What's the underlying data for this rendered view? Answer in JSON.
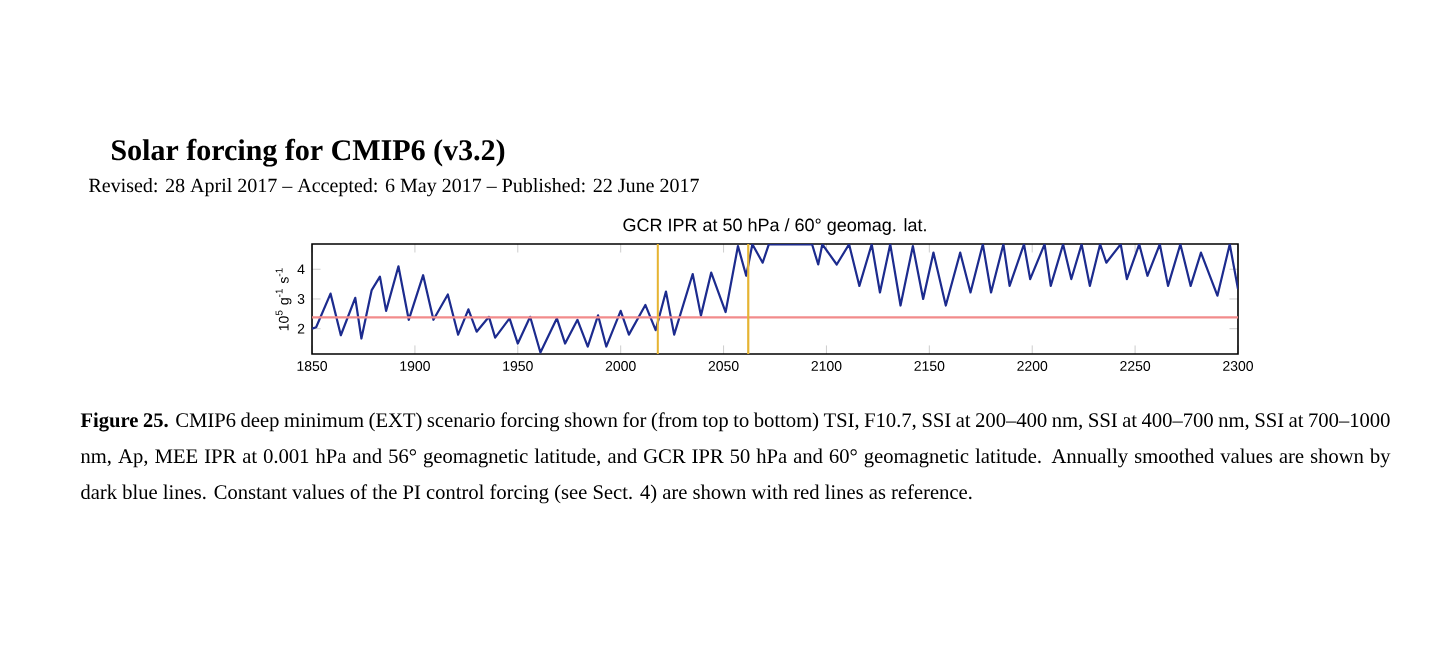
{
  "chart_data": {
    "type": "line",
    "title": "GCR IPR at 50 hPa / 60° geomag. lat.",
    "ylabel": "10$^{5}$ g$^{-1}$ s$^{-1}$",
    "annotations": [
      "Solar forcing for CMIP6 (v3.2)",
      "Revised: 28 April 2017 – Accepted: 6 May 2017 – Published: 22 June 2017",
      "**Figure 25.** CMIP6 deep minimum (EXT) scenario forcing shown for (from top to bottom) TSI, F10.7, SSI at 200–400 nm, SSI at 400–700 nm, SSI at 700–1000 nm, Ap, MEE IPR at 0.001 hPa and 56° geomagnetic latitude, and GCR IPR 50 hPa and 60° geomagnetic latitude. Annually smoothed values are shown by dark blue lines. Constant values of the PI control forcing (see Sect. 4) are shown with red lines as reference."
    ],
    "x": [
      1850,
      1852,
      1859,
      1864,
      1871,
      1874,
      1879,
      1883,
      1886,
      1892,
      1897,
      1904,
      1909,
      1916,
      1921,
      1926,
      1930,
      1936,
      1939,
      1946,
      1950,
      1956,
      1961,
      1969,
      1973,
      1979,
      1984,
      1989,
      1993,
      2000,
      2004,
      2012,
      2017,
      2022,
      2026,
      2035,
      2039,
      2044,
      2051,
      2057,
      2061,
      2064,
      2069,
      2072,
      2093,
      2096,
      2098,
      2105,
      2111,
      2116,
      2122,
      2126,
      2131,
      2136,
      2142,
      2147,
      2152,
      2158,
      2165,
      2170,
      2176,
      2180,
      2186,
      2189,
      2196,
      2199,
      2206,
      2209,
      2215,
      2219,
      2224,
      2228,
      2233,
      2236,
      2243,
      2246,
      2252,
      2256,
      2262,
      2266,
      2272,
      2277,
      2282,
      2290,
      2296,
      2300
    ],
    "series": [
      {
        "color": "#1c2b8e",
        "values": [
          2.0,
          2.05,
          3.18,
          1.78,
          3.04,
          1.67,
          3.3,
          3.75,
          2.6,
          4.1,
          2.3,
          3.8,
          2.3,
          3.15,
          1.8,
          2.65,
          1.9,
          2.4,
          1.7,
          2.35,
          1.5,
          2.4,
          1.2,
          2.35,
          1.5,
          2.3,
          1.4,
          2.45,
          1.4,
          2.6,
          1.8,
          2.8,
          1.95,
          3.25,
          1.8,
          3.84,
          2.44,
          3.89,
          2.56,
          4.78,
          3.78,
          4.84,
          4.22,
          4.84,
          4.84,
          4.16,
          4.84,
          4.16,
          4.84,
          3.44,
          4.84,
          3.22,
          4.84,
          2.78,
          4.78,
          3.0,
          4.56,
          2.78,
          4.56,
          3.22,
          4.84,
          3.22,
          4.84,
          3.44,
          4.84,
          3.67,
          4.84,
          3.44,
          4.84,
          3.67,
          4.84,
          3.44,
          4.84,
          4.22,
          4.84,
          3.67,
          4.84,
          3.78,
          4.84,
          3.44,
          4.84,
          3.44,
          4.56,
          3.11,
          4.84,
          3.33
        ]
      }
    ],
    "xlim": [
      1850,
      2300
    ],
    "ylim": [
      1.15,
      4.85
    ],
    "xticks": [
      1850,
      1900,
      1950,
      2000,
      2050,
      2100,
      2150,
      2200,
      2250,
      2300
    ],
    "yticks": [
      2,
      3,
      4
    ],
    "ref_lines": [
      {
        "axis": "y",
        "value": 2.38,
        "color": "#f28b8b"
      },
      {
        "axis": "x",
        "value": 2018,
        "color": "#e6b432"
      },
      {
        "axis": "x",
        "value": 2062,
        "color": "#e6b432"
      }
    ]
  }
}
